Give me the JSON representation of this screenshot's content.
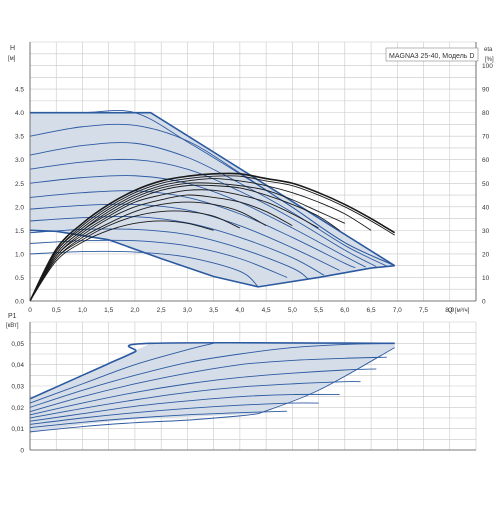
{
  "model_label": "MAGNA3 25-40, Модель D",
  "colors": {
    "grid": "#c8c8c8",
    "region_fill": "#d5dde9",
    "blue_curve": "#2c5aa0",
    "black_curve": "#1a1a1a",
    "axis": "#555555"
  },
  "chart_data": [
    {
      "type": "line",
      "id": "head",
      "ylabel": "H",
      "yunit": "[м]",
      "y2label": "eta",
      "y2unit": "[%]",
      "xlabel": "Q",
      "xunit": "[м³/ч]",
      "xlim": [
        0,
        8.5
      ],
      "ylim": [
        0,
        5.5
      ],
      "y2lim": [
        0,
        110
      ],
      "x_ticks": [
        "0",
        "0,5",
        "1,0",
        "1,5",
        "2,0",
        "2,5",
        "3,0",
        "3,5",
        "4,0",
        "4,5",
        "5,0",
        "5,5",
        "6,0",
        "6,5",
        "7,0",
        "7,5",
        "8,0"
      ],
      "y_ticks": [
        "0.0",
        "0.5",
        "1.0",
        "1.5",
        "2.0",
        "2.5",
        "3.0",
        "3.5",
        "4.0",
        "4.5"
      ],
      "y2_ticks": [
        "0",
        "10",
        "20",
        "30",
        "40",
        "50",
        "60",
        "70",
        "80",
        "90",
        "100"
      ],
      "grid": true,
      "envelope": {
        "x": [
          0,
          2.3,
          6.95,
          6.95,
          6.5,
          5.5,
          4.35,
          3.5,
          2.5,
          1.5,
          0.5,
          0
        ],
        "y": [
          4.0,
          4.0,
          0.75,
          0.75,
          0.7,
          0.5,
          0.3,
          0.52,
          0.9,
          1.3,
          1.48,
          1.5
        ]
      },
      "head_curves": [
        {
          "x": [
            0,
            1.0,
            2.0,
            3.0,
            4.0,
            5.0,
            6.0,
            6.95
          ],
          "y": [
            4.0,
            4.0,
            4.0,
            3.38,
            2.7,
            1.99,
            1.24,
            0.75
          ]
        },
        {
          "x": [
            0,
            1.0,
            2.0,
            3.0,
            4.0,
            5.0,
            6.0,
            6.95
          ],
          "y": [
            3.5,
            3.7,
            3.73,
            3.4,
            2.72,
            1.99,
            1.24,
            0.75
          ]
        },
        {
          "x": [
            0,
            1.0,
            2.0,
            3.0,
            4.0,
            5.0,
            6.0,
            6.8
          ],
          "y": [
            3.1,
            3.3,
            3.35,
            3.05,
            2.5,
            1.88,
            1.18,
            0.74
          ]
        },
        {
          "x": [
            0,
            1.0,
            2.0,
            3.0,
            4.0,
            5.0,
            6.0,
            6.6
          ],
          "y": [
            2.8,
            2.95,
            3.0,
            2.8,
            2.33,
            1.75,
            1.08,
            0.73
          ]
        },
        {
          "x": [
            0,
            1.0,
            2.0,
            3.0,
            4.0,
            5.0,
            6.0,
            6.4
          ],
          "y": [
            2.5,
            2.62,
            2.66,
            2.5,
            2.1,
            1.55,
            0.95,
            0.72
          ]
        },
        {
          "x": [
            0,
            1.0,
            2.0,
            3.0,
            4.0,
            5.0,
            6.0,
            6.2
          ],
          "y": [
            2.2,
            2.3,
            2.34,
            2.2,
            1.85,
            1.35,
            0.8,
            0.71
          ]
        },
        {
          "x": [
            0,
            1.0,
            2.0,
            3.0,
            4.0,
            5.0,
            5.9
          ],
          "y": [
            1.95,
            2.03,
            2.05,
            1.93,
            1.6,
            1.13,
            0.65
          ]
        },
        {
          "x": [
            0,
            1.0,
            2.0,
            3.0,
            4.0,
            5.0,
            5.6
          ],
          "y": [
            1.7,
            1.77,
            1.79,
            1.66,
            1.35,
            0.92,
            0.55
          ]
        },
        {
          "x": [
            0,
            1.0,
            2.0,
            3.0,
            4.0,
            5.0,
            5.3
          ],
          "y": [
            1.45,
            1.52,
            1.52,
            1.41,
            1.12,
            0.7,
            0.47
          ]
        },
        {
          "x": [
            0,
            1.0,
            2.0,
            3.0,
            4.0,
            4.9
          ],
          "y": [
            1.22,
            1.28,
            1.28,
            1.17,
            0.9,
            0.5
          ]
        },
        {
          "x": [
            0,
            1.0,
            2.0,
            3.0,
            4.0,
            4.35
          ],
          "y": [
            1.0,
            1.05,
            1.04,
            0.93,
            0.63,
            0.3
          ]
        }
      ],
      "edge_curves": [
        {
          "x": [
            0,
            2.3,
            6.95
          ],
          "y": [
            4.0,
            4.0,
            0.75
          ]
        },
        {
          "x": [
            0,
            0.5,
            1.5,
            2.5,
            3.5,
            4.35,
            5.5,
            6.5,
            6.95
          ],
          "y": [
            1.5,
            1.48,
            1.3,
            0.9,
            0.52,
            0.3,
            0.5,
            0.7,
            0.75
          ]
        }
      ],
      "eta_curves": [
        {
          "x": [
            0,
            0.5,
            1.0,
            1.5,
            2.0,
            2.5,
            3.0,
            3.5,
            4.0,
            4.5,
            5.0,
            5.5,
            6.0,
            6.5,
            6.95
          ],
          "y": [
            0,
            22,
            33,
            41,
            47,
            51,
            53,
            54,
            54,
            52,
            50,
            46,
            41,
            35,
            29
          ]
        },
        {
          "x": [
            0,
            0.5,
            1.0,
            1.5,
            2.0,
            2.5,
            3.0,
            3.5,
            4.0,
            4.5,
            5.0,
            5.5,
            6.0,
            6.5,
            6.95
          ],
          "y": [
            0,
            21,
            32,
            40,
            46,
            50,
            52,
            53,
            53,
            51,
            49,
            45,
            40,
            34,
            28
          ]
        },
        {
          "x": [
            0,
            0.5,
            1.0,
            1.5,
            2.0,
            2.5,
            3.0,
            3.5,
            4.0,
            4.5,
            5.0,
            5.5,
            6.0,
            6.5
          ],
          "y": [
            0,
            21,
            31,
            39,
            45,
            49,
            51,
            52,
            51,
            49,
            46,
            42,
            37,
            30
          ]
        },
        {
          "x": [
            0,
            0.5,
            1.0,
            1.5,
            2.0,
            2.5,
            3.0,
            3.5,
            4.0,
            4.5,
            5.0,
            5.5,
            6.0
          ],
          "y": [
            0,
            20,
            30,
            38,
            44,
            48,
            50,
            50,
            49,
            47,
            43,
            38,
            33
          ]
        },
        {
          "x": [
            0,
            0.5,
            1.0,
            1.5,
            2.0,
            2.5,
            3.0,
            3.5,
            4.0,
            4.5,
            5.0,
            5.5,
            5.9
          ],
          "y": [
            0,
            20,
            30,
            37,
            43,
            47,
            49,
            49,
            48,
            45,
            41,
            36,
            30
          ]
        },
        {
          "x": [
            0,
            0.5,
            1.0,
            1.5,
            2.0,
            2.5,
            3.0,
            3.5,
            4.0,
            4.5,
            5.0,
            5.5
          ],
          "y": [
            0,
            19,
            29,
            36,
            42,
            45,
            47,
            47,
            45,
            42,
            37,
            31
          ]
        },
        {
          "x": [
            0,
            0.5,
            1.0,
            1.5,
            2.0,
            2.5,
            3.0,
            3.5,
            4.0,
            4.5,
            5.0
          ],
          "y": [
            0,
            19,
            28,
            35,
            40,
            43,
            45,
            44,
            42,
            38,
            32
          ]
        },
        {
          "x": [
            0,
            0.5,
            1.0,
            1.5,
            2.0,
            2.5,
            3.0,
            3.5,
            4.0,
            4.5
          ],
          "y": [
            0,
            18,
            27,
            33,
            38,
            41,
            42,
            41,
            38,
            32
          ]
        },
        {
          "x": [
            0,
            0.5,
            1.0,
            1.5,
            2.0,
            2.5,
            3.0,
            3.5,
            4.0
          ],
          "y": [
            0,
            18,
            26,
            32,
            36,
            38,
            38,
            36,
            31
          ]
        },
        {
          "x": [
            0,
            0.5,
            1.0,
            1.5,
            2.0,
            2.5,
            3.0,
            3.5
          ],
          "y": [
            0,
            17,
            25,
            30,
            33,
            34,
            33,
            30
          ]
        }
      ]
    },
    {
      "type": "line",
      "id": "power",
      "ylabel": "P1",
      "yunit": "[кВт]",
      "xlim": [
        0,
        8.5
      ],
      "ylim": [
        0,
        0.06
      ],
      "y_ticks": [
        "0",
        "0,01",
        "0,02",
        "0,03",
        "0,04",
        "0,05"
      ],
      "grid": true,
      "envelope": {
        "x": [
          0,
          2.3,
          6.95,
          6.95,
          5.5,
          4.35,
          3.0,
          2.0,
          1.0,
          0
        ],
        "y": [
          0.024,
          0.05,
          0.05,
          0.048,
          0.028,
          0.017,
          0.0155,
          0.0145,
          0.012,
          0.008
        ]
      },
      "power_curves": [
        {
          "x": [
            0,
            0.5,
            1.0,
            1.5,
            2.0,
            2.3,
            6.95
          ],
          "y": [
            0.024,
            0.0295,
            0.035,
            0.0405,
            0.046,
            0.05,
            0.05
          ]
        },
        {
          "x": [
            0,
            1.0,
            2.0,
            3.0,
            3.5
          ],
          "y": [
            0.022,
            0.031,
            0.04,
            0.047,
            0.05
          ]
        },
        {
          "x": [
            0,
            1.0,
            2.0,
            3.0,
            4.0,
            5.0,
            6.0,
            6.95
          ],
          "y": [
            0.02,
            0.028,
            0.035,
            0.041,
            0.045,
            0.048,
            0.0495,
            0.05
          ]
        },
        {
          "x": [
            0,
            1.0,
            2.0,
            3.0,
            4.0,
            5.0,
            6.0,
            6.8
          ],
          "y": [
            0.018,
            0.025,
            0.031,
            0.036,
            0.04,
            0.042,
            0.043,
            0.0435
          ]
        },
        {
          "x": [
            0,
            1.0,
            2.0,
            3.0,
            4.0,
            5.0,
            6.0,
            6.6
          ],
          "y": [
            0.0165,
            0.022,
            0.027,
            0.031,
            0.034,
            0.036,
            0.0375,
            0.038
          ]
        },
        {
          "x": [
            0,
            1.0,
            2.0,
            3.0,
            4.0,
            5.0,
            6.0,
            6.3
          ],
          "y": [
            0.015,
            0.0195,
            0.0235,
            0.027,
            0.0295,
            0.031,
            0.032,
            0.032
          ]
        },
        {
          "x": [
            0,
            1.0,
            2.0,
            3.0,
            4.0,
            5.0,
            5.9
          ],
          "y": [
            0.0135,
            0.017,
            0.0205,
            0.023,
            0.025,
            0.026,
            0.026
          ]
        },
        {
          "x": [
            0,
            1.0,
            2.0,
            3.0,
            4.0,
            5.0,
            5.5
          ],
          "y": [
            0.012,
            0.015,
            0.0175,
            0.0195,
            0.021,
            0.022,
            0.022
          ]
        },
        {
          "x": [
            0,
            1.0,
            2.0,
            3.0,
            4.0,
            4.9
          ],
          "y": [
            0.0105,
            0.013,
            0.015,
            0.0165,
            0.0175,
            0.0182
          ]
        },
        {
          "x": [
            0,
            1.0,
            2.0,
            3.0,
            4.0,
            4.35
          ],
          "y": [
            0.0085,
            0.011,
            0.0128,
            0.014,
            0.016,
            0.017
          ]
        },
        {
          "x": [
            4.35,
            5.5,
            6.95
          ],
          "y": [
            0.017,
            0.028,
            0.048
          ]
        }
      ]
    }
  ]
}
